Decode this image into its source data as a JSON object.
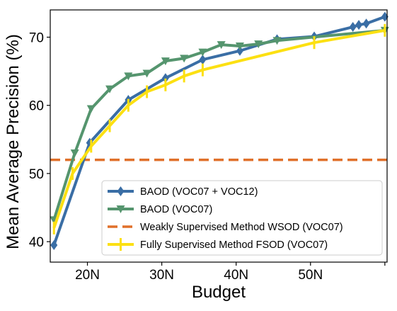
{
  "chart_data": {
    "type": "line",
    "title": "",
    "xlabel": "Budget",
    "ylabel": "Mean Average Precision (%)",
    "x_ticks": [
      {
        "value": 20,
        "label": "20N"
      },
      {
        "value": 30,
        "label": "30N"
      },
      {
        "value": 40,
        "label": "40N"
      },
      {
        "value": 50,
        "label": "50N"
      },
      {
        "value": 60,
        "label": ""
      }
    ],
    "y_ticks": [
      {
        "value": 40,
        "label": "40"
      },
      {
        "value": 50,
        "label": "50"
      },
      {
        "value": 60,
        "label": "60"
      },
      {
        "value": 70,
        "label": "70"
      }
    ],
    "xlim": [
      15,
      60.3
    ],
    "ylim": [
      37,
      74
    ],
    "grid": false,
    "legend_position": "lower-right",
    "series": [
      {
        "name": "BAOD (VOC07 + VOC12)",
        "color": "#3a6ea5",
        "marker": "diamond",
        "style": "solid",
        "x": [
          15.5,
          20.3,
          25.5,
          30.5,
          35.5,
          40.5,
          45.5,
          50.5,
          55.7,
          56.5,
          57.5,
          60
        ],
        "y": [
          39.5,
          54.5,
          60.8,
          64.0,
          66.7,
          68.0,
          69.7,
          70.1,
          71.5,
          71.8,
          72.0,
          73.0
        ]
      },
      {
        "name": "BAOD (VOC07)",
        "color": "#55956e",
        "marker": "triangle-down",
        "style": "solid",
        "x": [
          15.5,
          18.3,
          20.5,
          23,
          25.5,
          28,
          30.5,
          33,
          35.5,
          38,
          40.5,
          43,
          45.5,
          60
        ],
        "y": [
          43.2,
          53.0,
          59.5,
          62.4,
          64.3,
          64.7,
          66.5,
          66.9,
          67.8,
          68.9,
          68.7,
          69.0,
          69.5,
          71.0
        ]
      },
      {
        "name": "Weakly Supervised Method WSOD (VOC07)",
        "color": "#e0702a",
        "marker": "none",
        "style": "dashed",
        "x": [
          15,
          60.3
        ],
        "y": [
          52.0,
          52.0
        ]
      },
      {
        "name": "Fully Supervised Method FSOD (VOC07)",
        "color": "#fce012",
        "marker": "vline",
        "style": "solid",
        "x": [
          15.5,
          18,
          20.5,
          23,
          25.5,
          28,
          30.5,
          33,
          35.5,
          50.5,
          60
        ],
        "y": [
          42.0,
          50.0,
          54.0,
          57.0,
          60.0,
          62.0,
          63.0,
          64.3,
          65.2,
          69.2,
          71.0
        ]
      }
    ]
  }
}
